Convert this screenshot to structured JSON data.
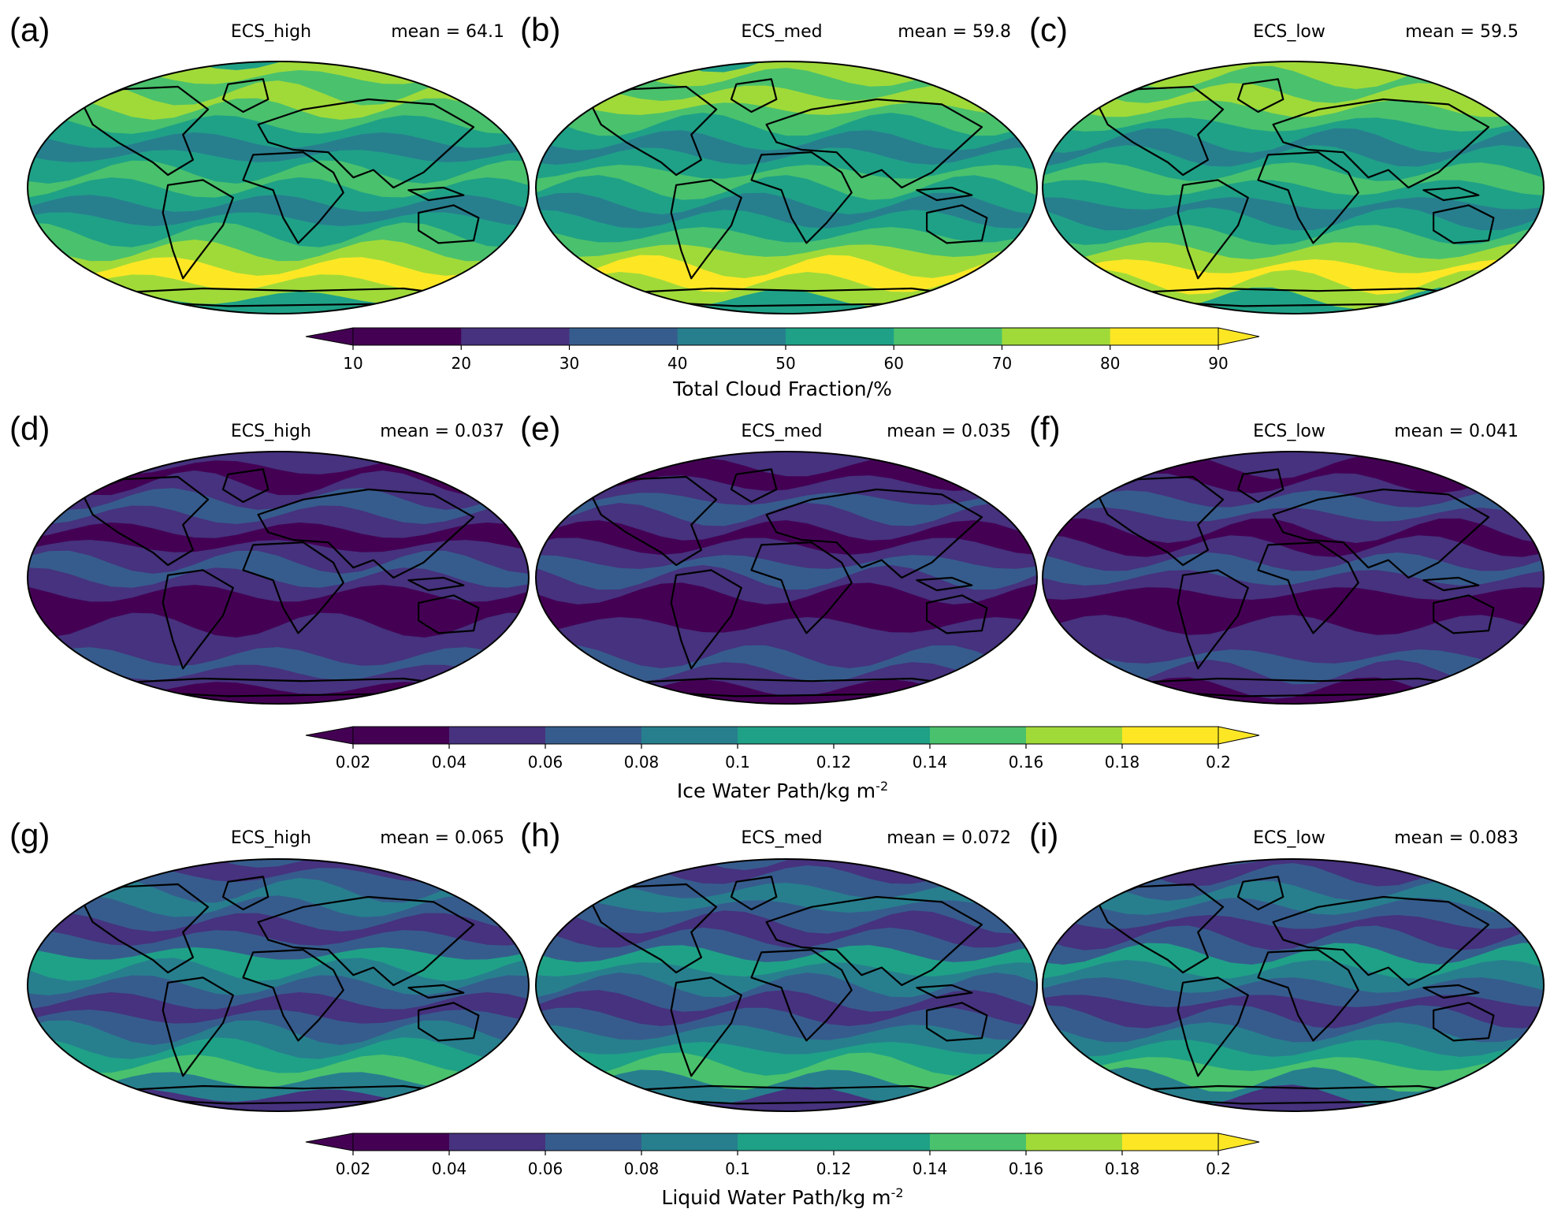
{
  "figure": {
    "rows": [
      {
        "variable": "Total Cloud Fraction",
        "colorbar": {
          "label": "Total Cloud Fraction/%",
          "ticks": [
            "10",
            "20",
            "30",
            "40",
            "50",
            "60",
            "70",
            "80",
            "90"
          ],
          "levels": [
            10,
            20,
            30,
            40,
            50,
            60,
            70,
            80,
            90
          ],
          "extend": "both"
        },
        "panels": [
          {
            "label": "(a)",
            "title": "ECS_high",
            "mean": "mean = 64.1"
          },
          {
            "label": "(b)",
            "title": "ECS_med",
            "mean": "mean = 59.8"
          },
          {
            "label": "(c)",
            "title": "ECS_low",
            "mean": "mean = 59.5"
          }
        ]
      },
      {
        "variable": "Ice Water Path",
        "colorbar": {
          "label": "Ice Water Path/kg m",
          "label_superscript": "-2",
          "ticks": [
            "0.02",
            "0.04",
            "0.06",
            "0.08",
            "0.1",
            "0.12",
            "0.14",
            "0.16",
            "0.18",
            "0.2"
          ],
          "levels": [
            0.02,
            0.04,
            0.06,
            0.08,
            0.1,
            0.12,
            0.14,
            0.16,
            0.18,
            0.2
          ],
          "extend": "both"
        },
        "panels": [
          {
            "label": "(d)",
            "title": "ECS_high",
            "mean": "mean = 0.037"
          },
          {
            "label": "(e)",
            "title": "ECS_med",
            "mean": "mean = 0.035"
          },
          {
            "label": "(f)",
            "title": "ECS_low",
            "mean": "mean = 0.041"
          }
        ]
      },
      {
        "variable": "Liquid Water Path",
        "colorbar": {
          "label": "Liquid Water Path/kg m",
          "label_superscript": "-2",
          "ticks": [
            "0.02",
            "0.04",
            "0.06",
            "0.08",
            "0.1",
            "0.12",
            "0.14",
            "0.16",
            "0.18",
            "0.2"
          ],
          "levels": [
            0.02,
            0.04,
            0.06,
            0.08,
            0.1,
            0.12,
            0.14,
            0.16,
            0.18,
            0.2
          ],
          "extend": "both"
        },
        "panels": [
          {
            "label": "(g)",
            "title": "ECS_high",
            "mean": "mean = 0.065"
          },
          {
            "label": "(h)",
            "title": "ECS_med",
            "mean": "mean = 0.072"
          },
          {
            "label": "(i)",
            "title": "ECS_low",
            "mean": "mean = 0.083"
          }
        ]
      }
    ],
    "projection": "Robinson",
    "colormap": "viridis",
    "colors": [
      "#440154",
      "#46327e",
      "#365c8d",
      "#277f8e",
      "#1fa187",
      "#4ac16d",
      "#a0da39",
      "#fde725"
    ]
  }
}
